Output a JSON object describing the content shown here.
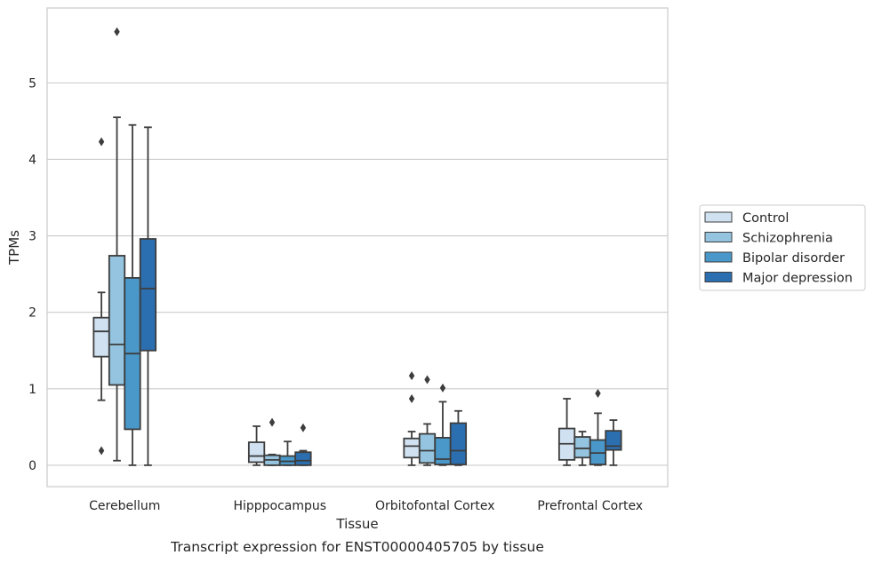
{
  "chart_data": {
    "type": "box",
    "caption": "Transcript expression for ENST00000405705 by tissue",
    "xlabel": "Tissue",
    "ylabel": "TPMs",
    "ylim": [
      -0.28,
      5.98
    ],
    "yticks": [
      0,
      1,
      2,
      3,
      4,
      5
    ],
    "grid": true,
    "legend_position": "right",
    "categories": [
      "Cerebellum",
      "Hipppocampus",
      "Orbitofontal Cortex",
      "Prefrontal Cortex"
    ],
    "series": [
      {
        "name": "Control",
        "color": "#d0e1f1",
        "boxes": [
          {
            "whislo": 0.85,
            "q1": 1.42,
            "med": 1.75,
            "q3": 1.93,
            "whishi": 2.26,
            "fliers": [
              4.23,
              0.19
            ]
          },
          {
            "whislo": 0.0,
            "q1": 0.04,
            "med": 0.12,
            "q3": 0.3,
            "whishi": 0.51,
            "fliers": []
          },
          {
            "whislo": 0.0,
            "q1": 0.1,
            "med": 0.25,
            "q3": 0.35,
            "whishi": 0.44,
            "fliers": [
              1.17,
              0.87
            ]
          },
          {
            "whislo": 0.0,
            "q1": 0.07,
            "med": 0.28,
            "q3": 0.48,
            "whishi": 0.87,
            "fliers": []
          }
        ]
      },
      {
        "name": "Schizophrenia",
        "color": "#94c4df",
        "boxes": [
          {
            "whislo": 0.06,
            "q1": 1.05,
            "med": 1.58,
            "q3": 2.74,
            "whishi": 4.55,
            "fliers": [
              5.67
            ]
          },
          {
            "whislo": 0.0,
            "q1": 0.0,
            "med": 0.07,
            "q3": 0.13,
            "whishi": 0.14,
            "fliers": [
              0.56
            ]
          },
          {
            "whislo": 0.0,
            "q1": 0.03,
            "med": 0.19,
            "q3": 0.41,
            "whishi": 0.54,
            "fliers": [
              1.12
            ]
          },
          {
            "whislo": 0.0,
            "q1": 0.1,
            "med": 0.22,
            "q3": 0.37,
            "whishi": 0.44,
            "fliers": []
          }
        ]
      },
      {
        "name": "Bipolar disorder",
        "color": "#4a98c9",
        "boxes": [
          {
            "whislo": 0.0,
            "q1": 0.47,
            "med": 1.46,
            "q3": 2.45,
            "whishi": 4.45,
            "fliers": []
          },
          {
            "whislo": 0.0,
            "q1": 0.0,
            "med": 0.05,
            "q3": 0.12,
            "whishi": 0.31,
            "fliers": []
          },
          {
            "whislo": 0.0,
            "q1": 0.01,
            "med": 0.08,
            "q3": 0.36,
            "whishi": 0.83,
            "fliers": [
              1.01
            ]
          },
          {
            "whislo": 0.0,
            "q1": 0.01,
            "med": 0.16,
            "q3": 0.33,
            "whishi": 0.68,
            "fliers": [
              0.94
            ]
          }
        ]
      },
      {
        "name": "Major depression",
        "color": "#2c6fb0",
        "boxes": [
          {
            "whislo": 0.0,
            "q1": 1.5,
            "med": 2.31,
            "q3": 2.96,
            "whishi": 4.42,
            "fliers": []
          },
          {
            "whislo": 0.0,
            "q1": 0.0,
            "med": 0.06,
            "q3": 0.17,
            "whishi": 0.19,
            "fliers": [
              0.49
            ]
          },
          {
            "whislo": 0.0,
            "q1": 0.01,
            "med": 0.19,
            "q3": 0.55,
            "whishi": 0.71,
            "fliers": []
          },
          {
            "whislo": 0.0,
            "q1": 0.2,
            "med": 0.25,
            "q3": 0.45,
            "whishi": 0.59,
            "fliers": []
          }
        ]
      }
    ]
  }
}
